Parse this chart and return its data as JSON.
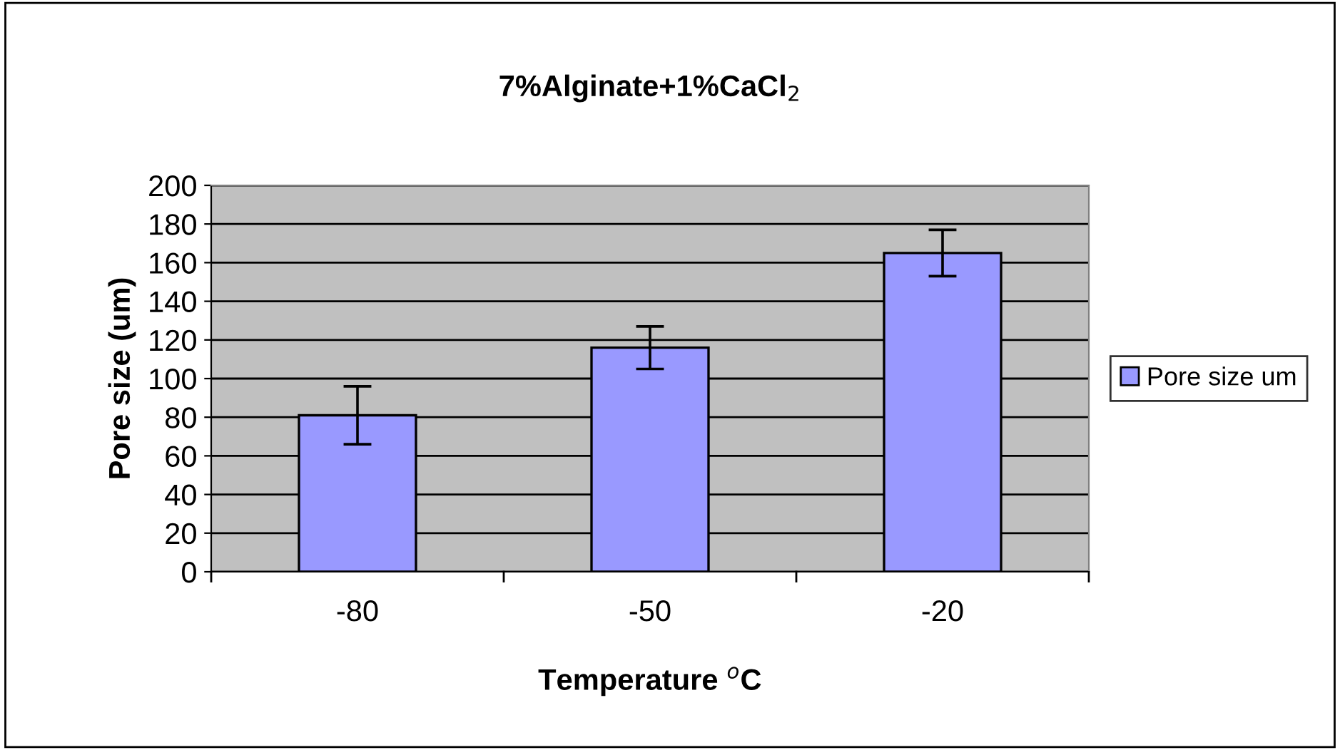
{
  "chart_data": {
    "type": "bar",
    "title": "7%Alginate+1%CaCl$_{2}$",
    "xlabel": "Temperature $^{o}$C",
    "ylabel": "Pore size (um)",
    "categories": [
      "-80",
      "-50",
      "-20"
    ],
    "series": [
      {
        "name": "Pore size um",
        "color": "#9999ff",
        "values": [
          81,
          116,
          165
        ],
        "errors": [
          15,
          11,
          12
        ]
      }
    ],
    "ylim": [
      0,
      200
    ],
    "yticks": [
      0,
      20,
      40,
      60,
      80,
      100,
      120,
      140,
      160,
      180,
      200
    ],
    "grid": "y",
    "legend": "right"
  }
}
